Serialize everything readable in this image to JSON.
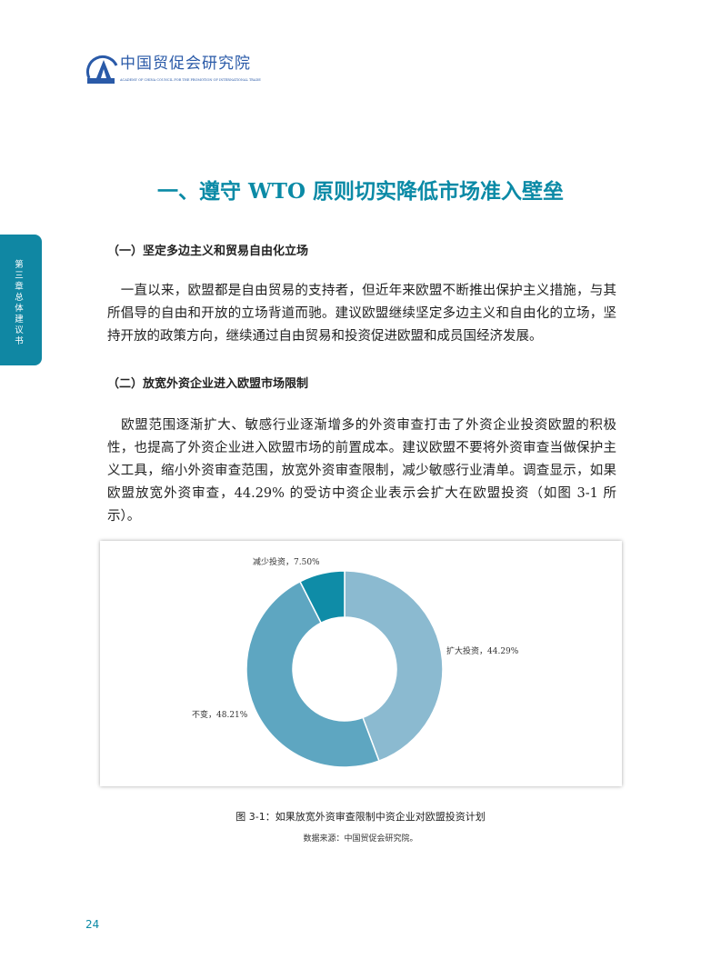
{
  "header": {
    "logo_cn": "中国贸促会研究院",
    "logo_en": "ACADEMY OF CHINA COUNCIL FOR THE PROMOTION OF INTERNATIONAL TRADE",
    "logo_mark": "CCPIT"
  },
  "side_tab": "第三章　总体建议书",
  "title": "一、遵守 WTO 原则切实降低市场准入壁垒",
  "sections": [
    {
      "heading": "（一）坚定多边主义和贸易自由化立场",
      "body": "　一直以来，欧盟都是自由贸易的支持者，但近年来欧盟不断推出保护主义措施，与其所倡导的自由和开放的立场背道而驰。建议欧盟继续坚定多边主义和自由化的立场，坚持开放的政策方向，继续通过自由贸易和投资促进欧盟和成员国经济发展。"
    },
    {
      "heading": "（二）放宽外资企业进入欧盟市场限制",
      "body": "　欧盟范围逐渐扩大、敏感行业逐渐增多的外资审查打击了外资企业投资欧盟的积极性，也提高了外资企业进入欧盟市场的前置成本。建议欧盟不要将外资审查当做保护主义工具，缩小外资审查范围，放宽外资审查限制，减少敏感行业清单。调查显示，如果欧盟放宽外资审查，44.29% 的受访中资企业表示会扩大在欧盟投资（如图 3-1 所示）。"
    }
  ],
  "chart_data": {
    "type": "pie",
    "donut": true,
    "slices": [
      {
        "label": "扩大投资，44.29%",
        "name": "扩大投资",
        "value": 44.29,
        "color": "#8bbad0"
      },
      {
        "label": "不变，48.21%",
        "name": "不变",
        "value": 48.21,
        "color": "#5ea6c1"
      },
      {
        "label": "减少投资，7.50%",
        "name": "减少投资",
        "value": 7.5,
        "color": "#0f8ca7"
      }
    ]
  },
  "caption": "图 3-1：如果放宽外资审查限制中资企业对欧盟投资计划",
  "source": "数据来源：中国贸促会研究院。",
  "page_number": "24"
}
